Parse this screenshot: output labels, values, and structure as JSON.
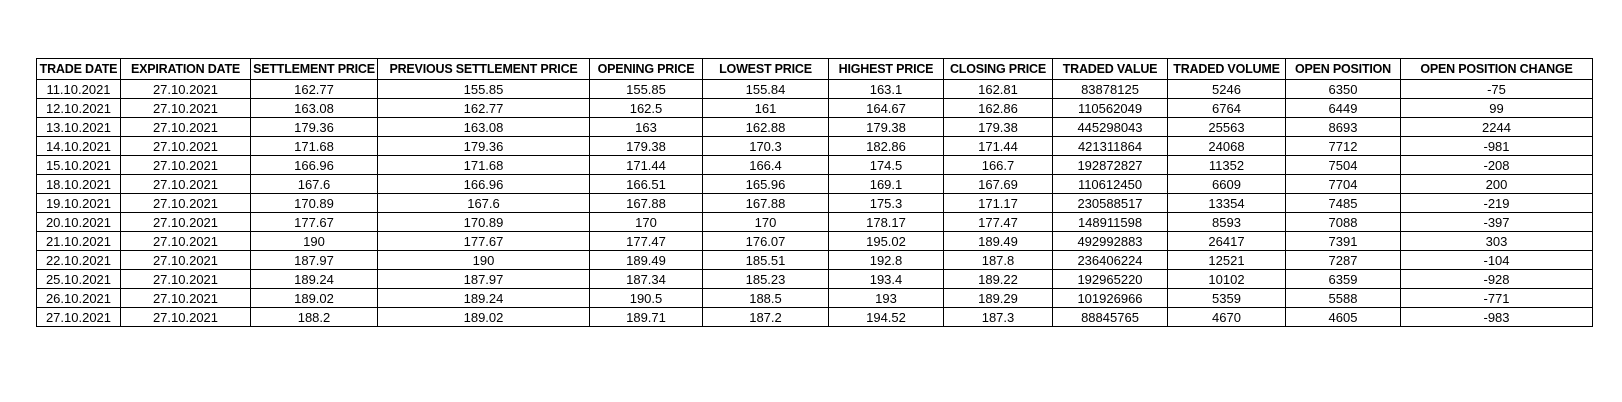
{
  "colors": {
    "background": "#ffffff",
    "border": "#000000",
    "text": "#000000"
  },
  "chart_data": {
    "type": "table",
    "columns": [
      "TRADE DATE",
      "EXPIRATION DATE",
      "SETTLEMENT PRICE",
      "PREVIOUS SETTLEMENT PRICE",
      "OPENING PRICE",
      "LOWEST PRICE",
      "HIGHEST PRICE",
      "CLOSING PRICE",
      "TRADED VALUE",
      "TRADED VOLUME",
      "OPEN POSITION",
      "OPEN POSITION CHANGE"
    ],
    "rows": [
      [
        "11.10.2021",
        "27.10.2021",
        162.77,
        155.85,
        155.85,
        155.84,
        163.1,
        162.81,
        83878125,
        5246,
        6350,
        -75
      ],
      [
        "12.10.2021",
        "27.10.2021",
        163.08,
        162.77,
        162.5,
        161,
        164.67,
        162.86,
        110562049,
        6764,
        6449,
        99
      ],
      [
        "13.10.2021",
        "27.10.2021",
        179.36,
        163.08,
        163,
        162.88,
        179.38,
        179.38,
        445298043,
        25563,
        8693,
        2244
      ],
      [
        "14.10.2021",
        "27.10.2021",
        171.68,
        179.36,
        179.38,
        170.3,
        182.86,
        171.44,
        421311864,
        24068,
        7712,
        -981
      ],
      [
        "15.10.2021",
        "27.10.2021",
        166.96,
        171.68,
        171.44,
        166.4,
        174.5,
        166.7,
        192872827,
        11352,
        7504,
        -208
      ],
      [
        "18.10.2021",
        "27.10.2021",
        167.6,
        166.96,
        166.51,
        165.96,
        169.1,
        167.69,
        110612450,
        6609,
        7704,
        200
      ],
      [
        "19.10.2021",
        "27.10.2021",
        170.89,
        167.6,
        167.88,
        167.88,
        175.3,
        171.17,
        230588517,
        13354,
        7485,
        -219
      ],
      [
        "20.10.2021",
        "27.10.2021",
        177.67,
        170.89,
        170,
        170,
        178.17,
        177.47,
        148911598,
        8593,
        7088,
        -397
      ],
      [
        "21.10.2021",
        "27.10.2021",
        190,
        177.67,
        177.47,
        176.07,
        195.02,
        189.49,
        492992883,
        26417,
        7391,
        303
      ],
      [
        "22.10.2021",
        "27.10.2021",
        187.97,
        190,
        189.49,
        185.51,
        192.8,
        187.8,
        236406224,
        12521,
        7287,
        -104
      ],
      [
        "25.10.2021",
        "27.10.2021",
        189.24,
        187.97,
        187.34,
        185.23,
        193.4,
        189.22,
        192965220,
        10102,
        6359,
        -928
      ],
      [
        "26.10.2021",
        "27.10.2021",
        189.02,
        189.24,
        190.5,
        188.5,
        193,
        189.29,
        101926966,
        5359,
        5588,
        -771
      ],
      [
        "27.10.2021",
        "27.10.2021",
        188.2,
        189.02,
        189.71,
        187.2,
        194.52,
        187.3,
        88845765,
        4670,
        4605,
        -983
      ]
    ]
  }
}
